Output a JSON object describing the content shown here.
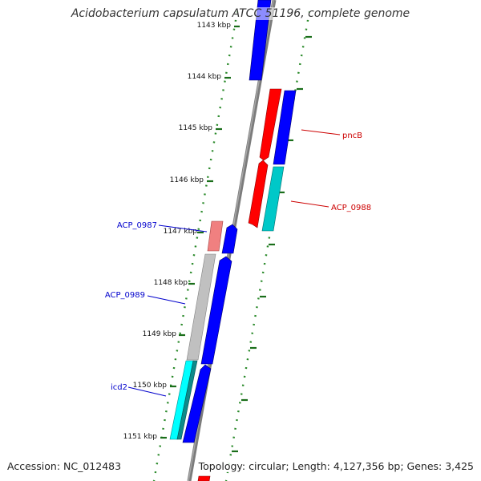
{
  "title": "Acidobacterium capsulatum ATCC 51196, complete genome",
  "footer": {
    "accession": "Accession: NC_012483",
    "summary": "Topology: circular; Length: 4,127,356 bp; Genes: 3,425"
  },
  "colors": {
    "backbone": "#8a8a8a",
    "tick": "#1a6e1a",
    "dot": "#2a8a2a",
    "forward_gene": "#ff0000",
    "forward_gene_light": "#f08080",
    "reverse_gene": "#0000ff",
    "cyan_gene": "#00c8c8",
    "cyan_bright": "#00ffff",
    "gray_gene": "#c0c0c0",
    "label_red": "#cc0000",
    "label_blue": "#0000cc"
  },
  "ticks": [
    {
      "label": "1143 kbp"
    },
    {
      "label": "1144 kbp"
    },
    {
      "label": "1145 kbp"
    },
    {
      "label": "1146 kbp"
    },
    {
      "label": "1147 kbp"
    },
    {
      "label": "1148 kbp"
    },
    {
      "label": "1149 kbp"
    },
    {
      "label": "1150 kbp"
    },
    {
      "label": "1151 kbp"
    }
  ],
  "gene_labels": [
    {
      "text": "pncB",
      "color": "#cc0000"
    },
    {
      "text": "ACP_0988",
      "color": "#cc0000"
    },
    {
      "text": "ACP_0987",
      "color": "#0000cc"
    },
    {
      "text": "ACP_0989",
      "color": "#0000cc"
    },
    {
      "text": "icd2",
      "color": "#0000cc"
    }
  ]
}
